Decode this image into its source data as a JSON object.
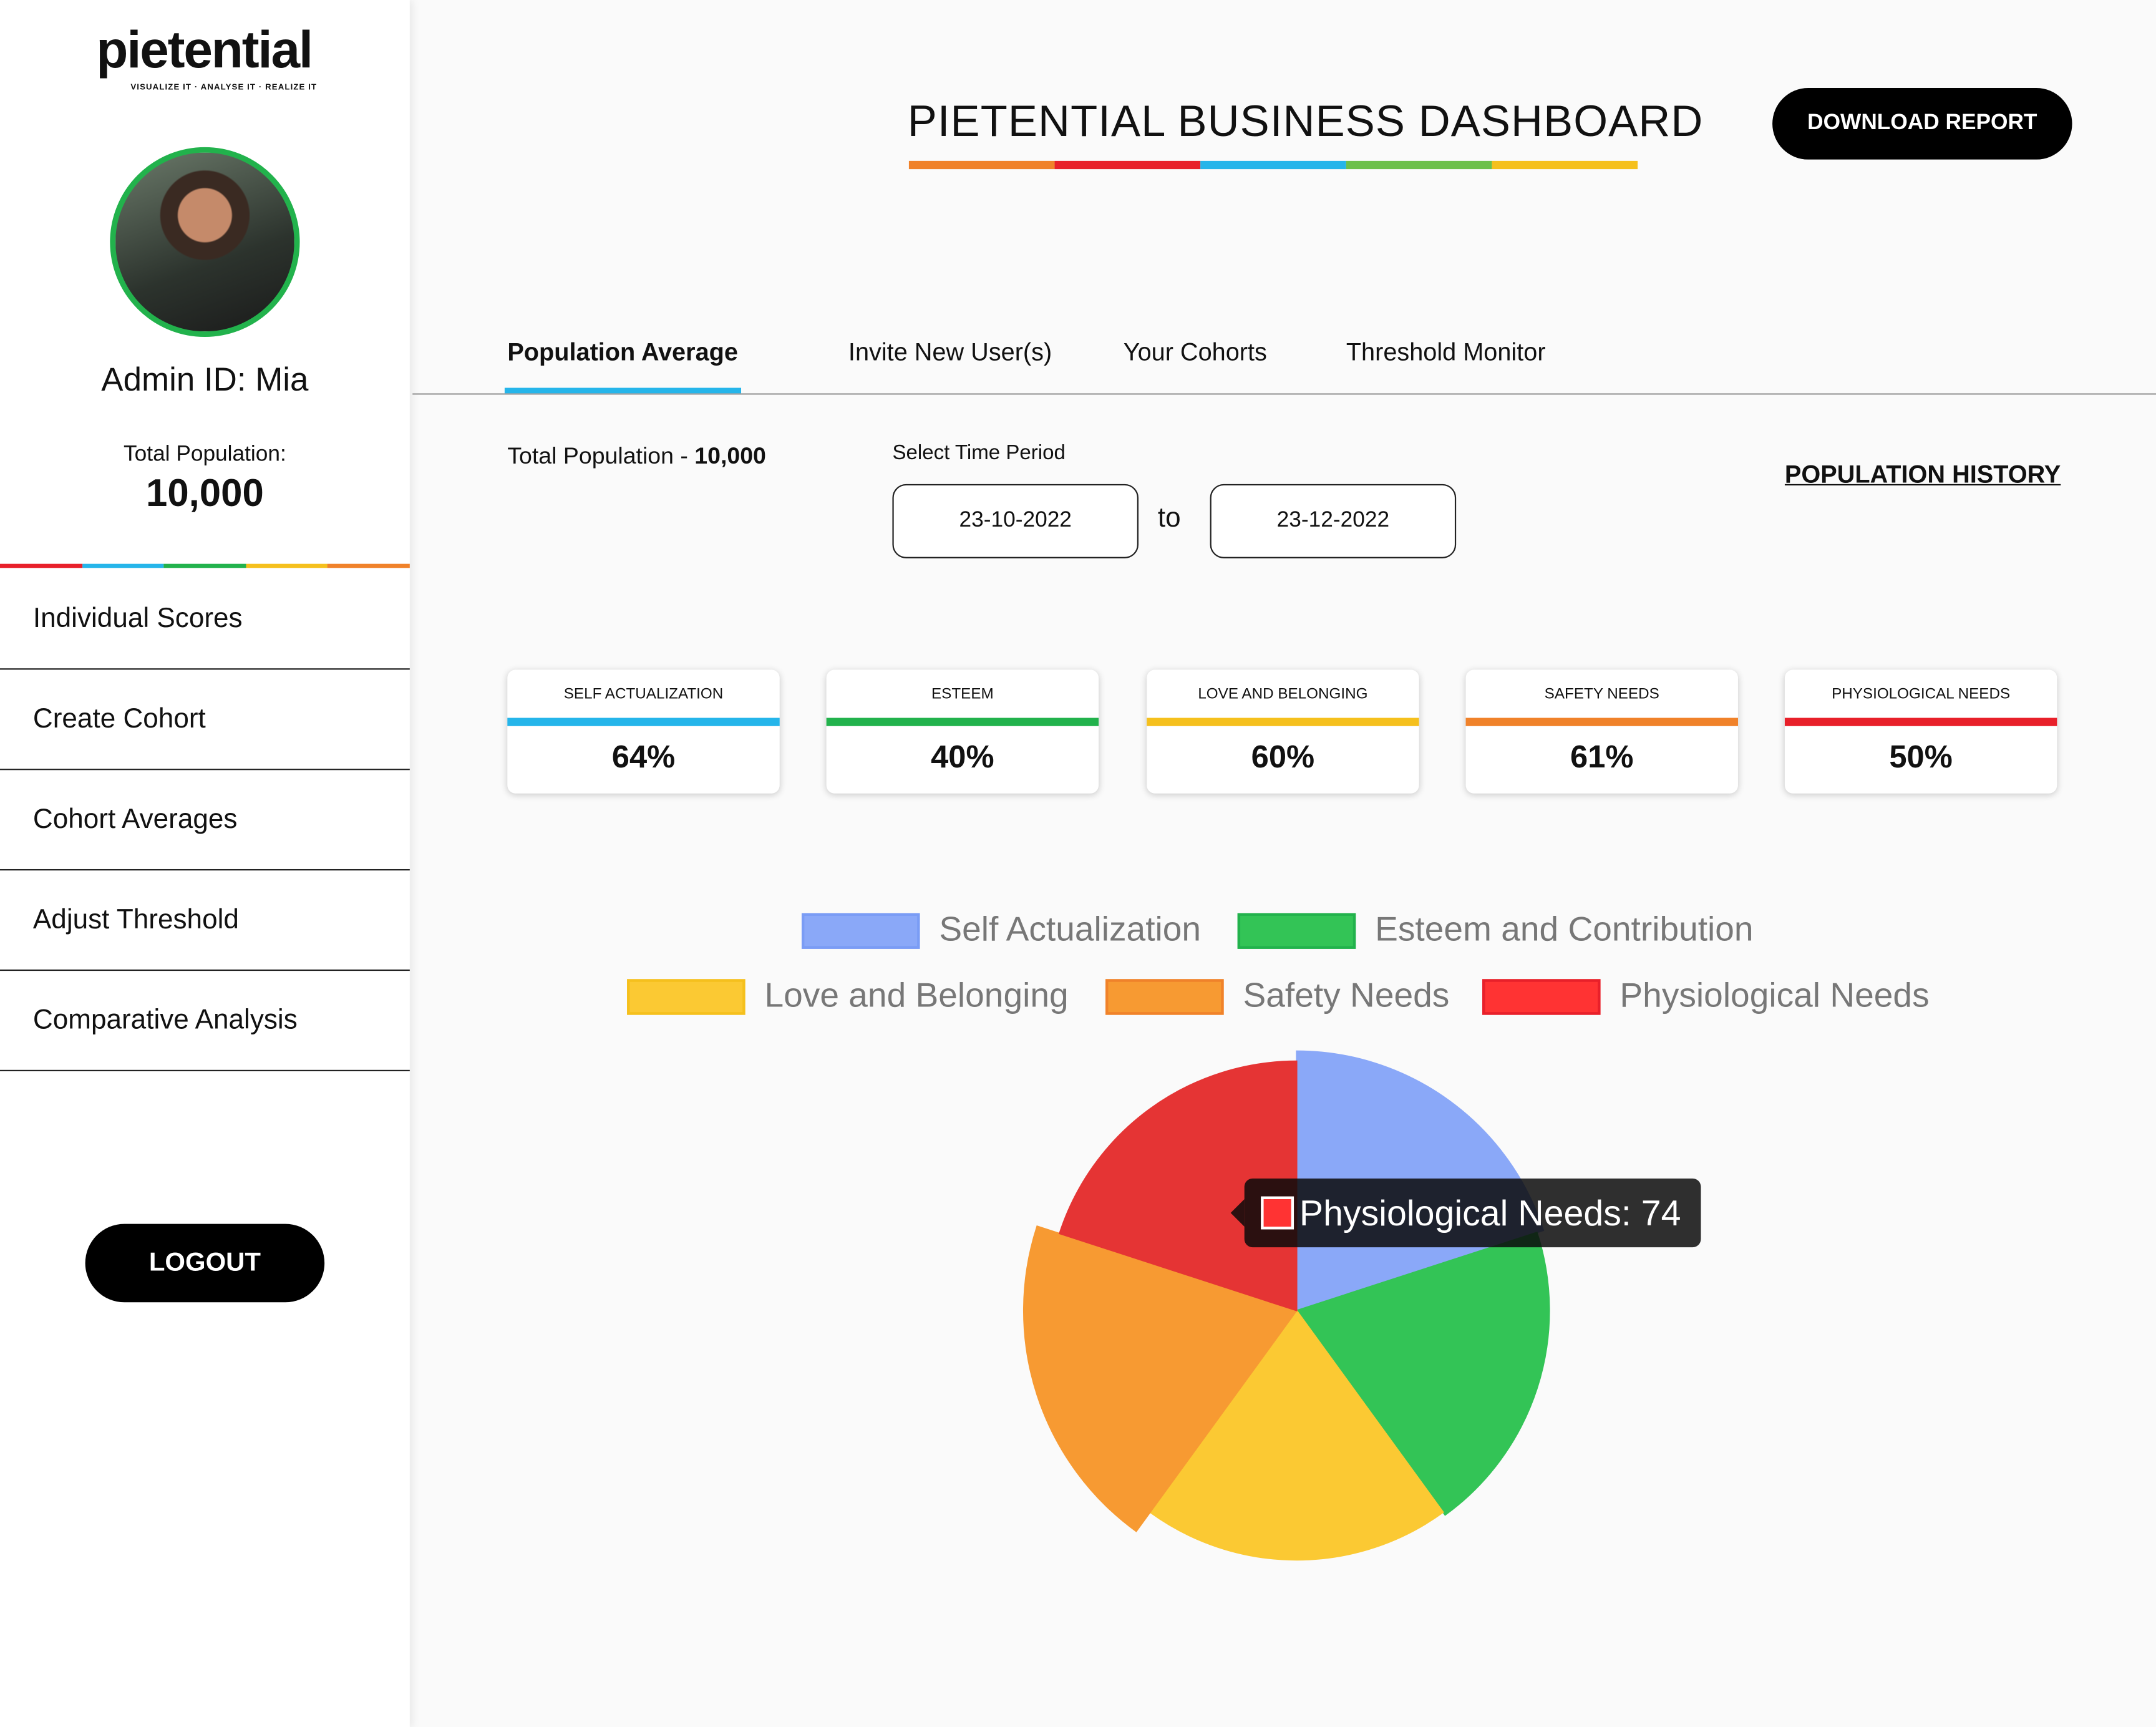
{
  "sidebar": {
    "logo": "pietential",
    "tagline": "VISUALIZE IT · ANALYSE IT · REALIZE IT",
    "admin": "Admin ID: Mia",
    "total_label": "Total Population:",
    "total_value": "10,000",
    "nav": [
      "Individual Scores",
      "Create Cohort",
      "Cohort Averages",
      "Adjust Threshold",
      "Comparative Analysis"
    ],
    "logout": "LOGOUT"
  },
  "header": {
    "title": "PIETENTIAL BUSINESS DASHBOARD",
    "download": "DOWNLOAD REPORT"
  },
  "tabs": [
    "Population Average",
    "Invite New User(s)",
    "Your Cohorts",
    "Threshold Monitor"
  ],
  "filters": {
    "total_label": "Total Population - ",
    "total_value": "10,000",
    "period_label": "Select Time Period",
    "from": "23-10-2022",
    "to_label": "to",
    "to": "23-12-2022",
    "history": "POPULATION HISTORY"
  },
  "cards": [
    {
      "label": "SELF ACTUALIZATION",
      "value": "64%",
      "color": "#25b5ea"
    },
    {
      "label": "ESTEEM",
      "value": "40%",
      "color": "#22b24c"
    },
    {
      "label": "LOVE AND BELONGING",
      "value": "60%",
      "color": "#f5c01d"
    },
    {
      "label": "SAFETY NEEDS",
      "value": "61%",
      "color": "#f0822a"
    },
    {
      "label": "PHYSIOLOGICAL NEEDS",
      "value": "50%",
      "color": "#e8202a"
    }
  ],
  "chart_data": {
    "type": "polarArea",
    "categories": [
      "Self Actualization",
      "Esteem and Contribution",
      "Love and Belonging",
      "Safety Needs",
      "Physiological Needs"
    ],
    "values": [
      77,
      75,
      74,
      81,
      74
    ],
    "colors": [
      "#8aa8f8",
      "#33c456",
      "#fbc933",
      "#f79a32",
      "#e53434"
    ],
    "tooltip": "Physiological Needs: 74"
  }
}
